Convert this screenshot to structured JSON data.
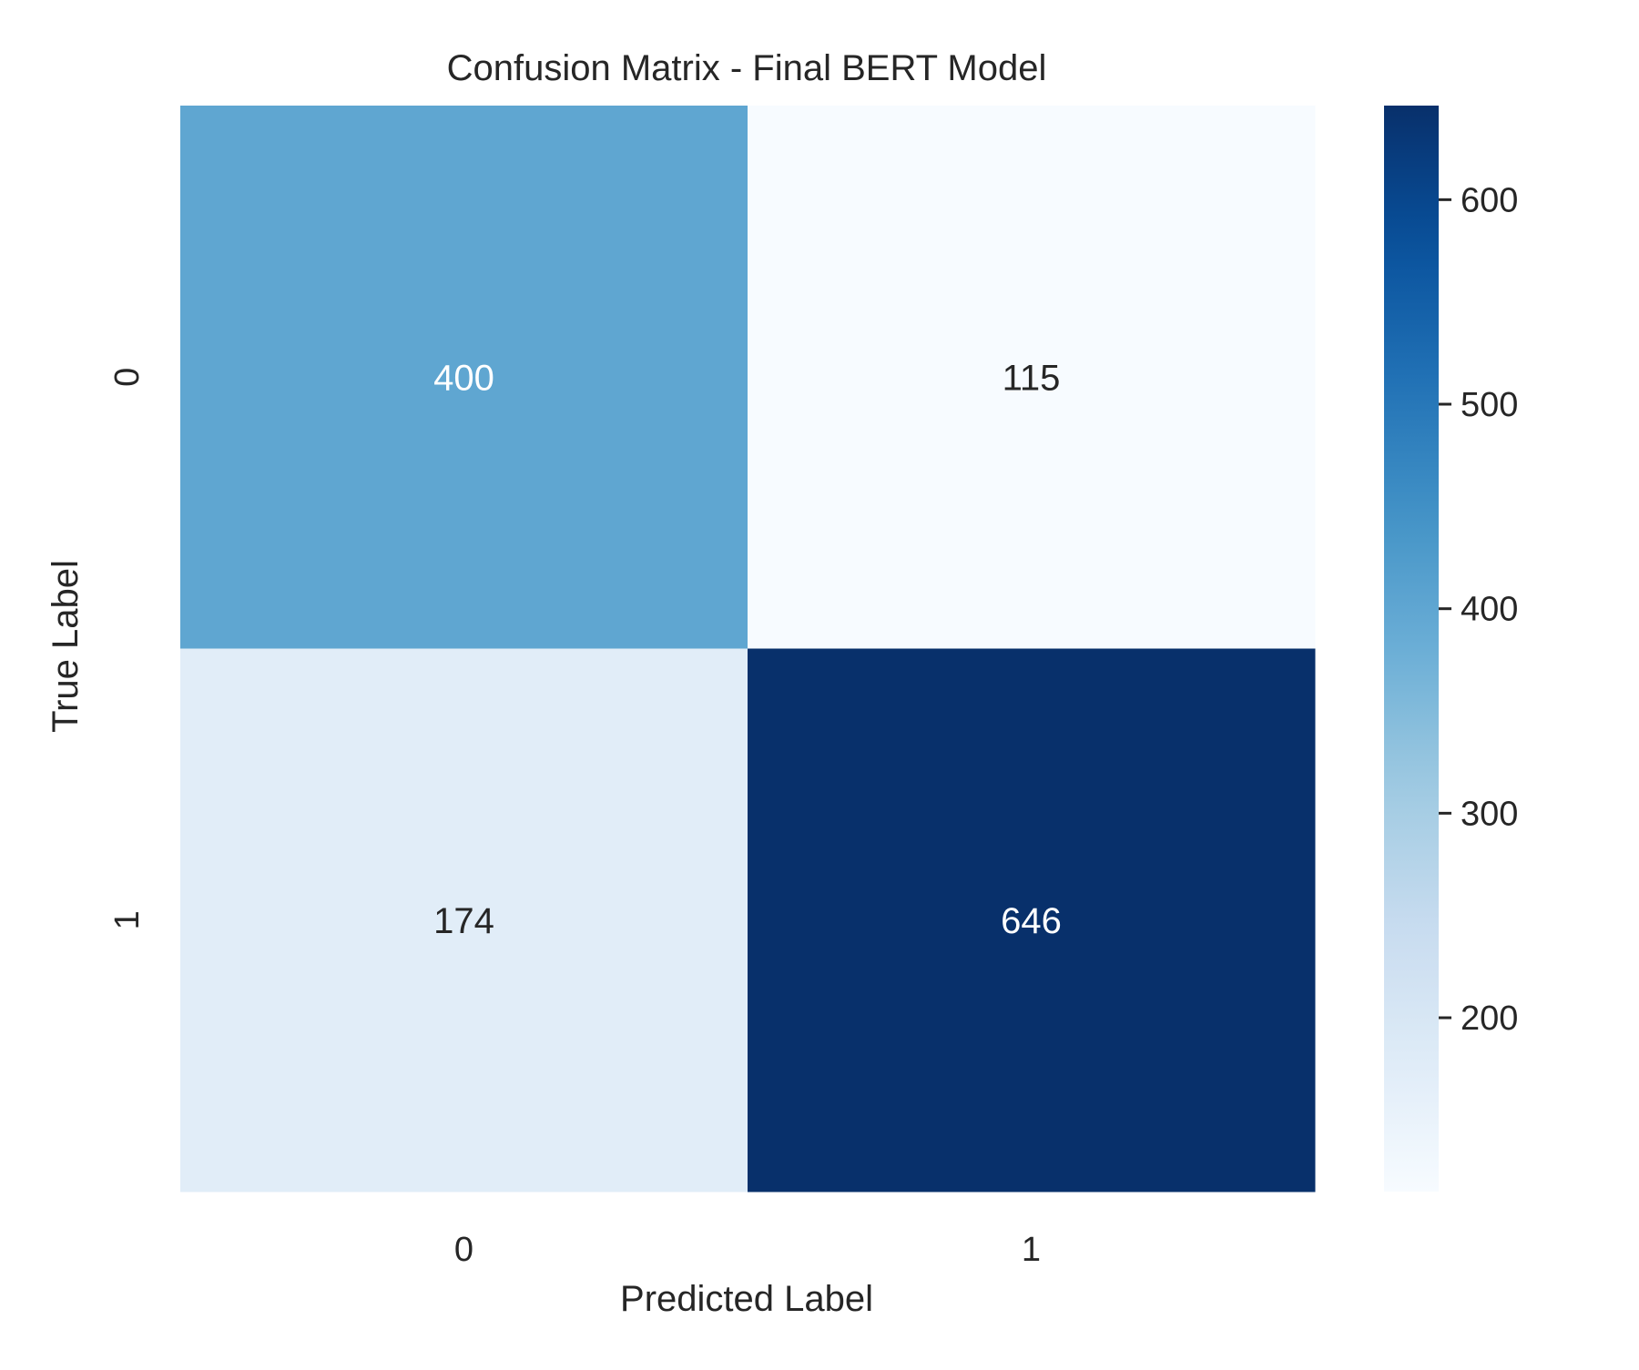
{
  "chart_data": {
    "type": "heatmap",
    "title": "Confusion Matrix - Final BERT Model",
    "xlabel": "Predicted Label",
    "ylabel": "True Label",
    "x_categories": [
      "0",
      "1"
    ],
    "y_categories": [
      "0",
      "1"
    ],
    "values": [
      [
        400,
        115
      ],
      [
        174,
        646
      ]
    ],
    "colormap": "Blues",
    "color_range": [
      115,
      646
    ],
    "colorbar_ticks": [
      200,
      300,
      400,
      500,
      600
    ],
    "colors": {
      "text_dark": "#262626",
      "text_light": "#ffffff"
    }
  }
}
